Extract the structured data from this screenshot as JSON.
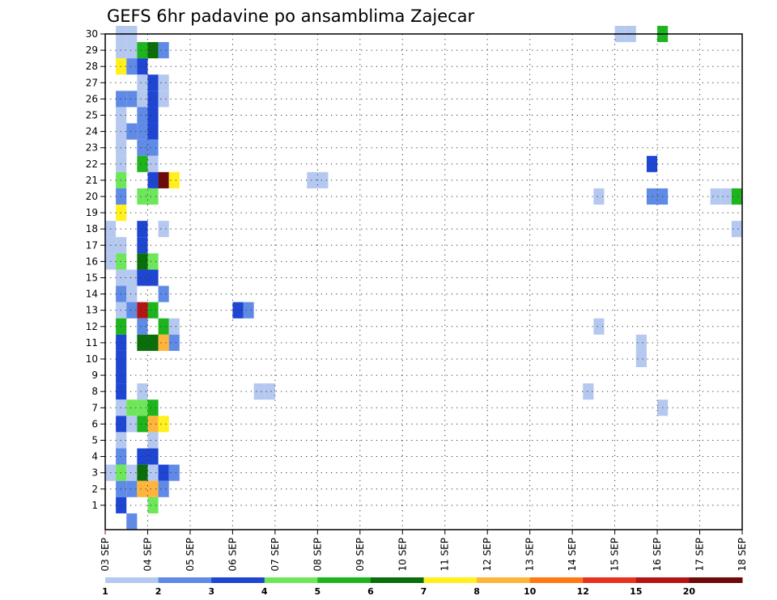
{
  "chart_data": {
    "type": "heatmap",
    "title": "GEFS 6hr padavine po ansamblima Zajecar",
    "x_ticks": [
      "03 SEP",
      "04 SEP",
      "05 SEP",
      "06 SEP",
      "07 SEP",
      "08 SEP",
      "09 SEP",
      "10 SEP",
      "11 SEP",
      "12 SEP",
      "13 SEP",
      "14 SEP",
      "15 SEP",
      "16 SEP",
      "17 SEP",
      "18 SEP"
    ],
    "y_ticks": [
      "1",
      "2",
      "3",
      "4",
      "5",
      "6",
      "7",
      "8",
      "9",
      "10",
      "11",
      "12",
      "13",
      "14",
      "15",
      "16",
      "17",
      "18",
      "19",
      "20",
      "21",
      "22",
      "23",
      "24",
      "25",
      "26",
      "27",
      "28",
      "29",
      "30"
    ],
    "xlim": [
      0,
      60
    ],
    "ylim": [
      0,
      30
    ],
    "grid": true,
    "colorbar": {
      "labels": [
        "1",
        "2",
        "3",
        "4",
        "5",
        "6",
        "7",
        "8",
        "10",
        "12",
        "15",
        "20"
      ],
      "colors": [
        "#b4c8f0",
        "#5f8ae6",
        "#1e46d2",
        "#6ee65a",
        "#1eb41e",
        "#0a6e0a",
        "#fff01e",
        "#ffb43c",
        "#ff7814",
        "#e6321e",
        "#b41414",
        "#6e0a0a"
      ]
    },
    "cells": [
      [
        1,
        30,
        1
      ],
      [
        2,
        30,
        1
      ],
      [
        1,
        29,
        1
      ],
      [
        2,
        29,
        1
      ],
      [
        3,
        29,
        5
      ],
      [
        4,
        29,
        6
      ],
      [
        5,
        29,
        2
      ],
      [
        1,
        28,
        7
      ],
      [
        2,
        28,
        2
      ],
      [
        3,
        28,
        3
      ],
      [
        3,
        27,
        1
      ],
      [
        4,
        27,
        3
      ],
      [
        5,
        27,
        1
      ],
      [
        1,
        26,
        2
      ],
      [
        2,
        26,
        2
      ],
      [
        3,
        26,
        1
      ],
      [
        4,
        26,
        3
      ],
      [
        5,
        26,
        1
      ],
      [
        1,
        25,
        1
      ],
      [
        3,
        25,
        2
      ],
      [
        4,
        25,
        3
      ],
      [
        1,
        24,
        1
      ],
      [
        2,
        24,
        2
      ],
      [
        3,
        24,
        2
      ],
      [
        4,
        24,
        3
      ],
      [
        1,
        23,
        1
      ],
      [
        3,
        23,
        2
      ],
      [
        4,
        23,
        2
      ],
      [
        1,
        22,
        1
      ],
      [
        3,
        22,
        5
      ],
      [
        4,
        22,
        1
      ],
      [
        1,
        21,
        4
      ],
      [
        4,
        21,
        3
      ],
      [
        5,
        21,
        12
      ],
      [
        6,
        21,
        7
      ],
      [
        1,
        20,
        2
      ],
      [
        3,
        20,
        4
      ],
      [
        4,
        20,
        4
      ],
      [
        1,
        19,
        7
      ],
      [
        0,
        18,
        1
      ],
      [
        3,
        18,
        3
      ],
      [
        5,
        18,
        1
      ],
      [
        0,
        17,
        1
      ],
      [
        1,
        17,
        1
      ],
      [
        3,
        17,
        3
      ],
      [
        0,
        16,
        1
      ],
      [
        1,
        16,
        4
      ],
      [
        3,
        16,
        6
      ],
      [
        4,
        16,
        4
      ],
      [
        1,
        15,
        1
      ],
      [
        2,
        15,
        1
      ],
      [
        3,
        15,
        3
      ],
      [
        4,
        15,
        3
      ],
      [
        1,
        14,
        2
      ],
      [
        2,
        14,
        1
      ],
      [
        5,
        14,
        2
      ],
      [
        1,
        13,
        1
      ],
      [
        2,
        13,
        2
      ],
      [
        3,
        13,
        11
      ],
      [
        4,
        13,
        5
      ],
      [
        1,
        12,
        5
      ],
      [
        3,
        12,
        2
      ],
      [
        5,
        12,
        5
      ],
      [
        6,
        12,
        1
      ],
      [
        1,
        11,
        3
      ],
      [
        3,
        11,
        6
      ],
      [
        4,
        11,
        6
      ],
      [
        5,
        11,
        8
      ],
      [
        6,
        11,
        2
      ],
      [
        1,
        10,
        3
      ],
      [
        1,
        9,
        3
      ],
      [
        1,
        8,
        3
      ],
      [
        3,
        8,
        1
      ],
      [
        1,
        7,
        1
      ],
      [
        2,
        7,
        4
      ],
      [
        3,
        7,
        4
      ],
      [
        4,
        7,
        5
      ],
      [
        1,
        6,
        3
      ],
      [
        2,
        6,
        1
      ],
      [
        3,
        6,
        5
      ],
      [
        4,
        6,
        8
      ],
      [
        5,
        6,
        7
      ],
      [
        1,
        5,
        1
      ],
      [
        4,
        5,
        1
      ],
      [
        1,
        4,
        2
      ],
      [
        3,
        4,
        3
      ],
      [
        4,
        4,
        3
      ],
      [
        0,
        3,
        1
      ],
      [
        1,
        3,
        4
      ],
      [
        2,
        3,
        1
      ],
      [
        3,
        3,
        6
      ],
      [
        4,
        3,
        1
      ],
      [
        5,
        3,
        3
      ],
      [
        6,
        3,
        2
      ],
      [
        1,
        2,
        2
      ],
      [
        2,
        2,
        2
      ],
      [
        3,
        2,
        8
      ],
      [
        4,
        2,
        8
      ],
      [
        5,
        2,
        2
      ],
      [
        1,
        1,
        3
      ],
      [
        4,
        1,
        4
      ],
      [
        2,
        0,
        2
      ],
      [
        12,
        13,
        3
      ],
      [
        13,
        13,
        2
      ],
      [
        14,
        8,
        1
      ],
      [
        15,
        8,
        1
      ],
      [
        19,
        21,
        1
      ],
      [
        20,
        21,
        1
      ],
      [
        45,
        8,
        1
      ],
      [
        46,
        20,
        1
      ],
      [
        46,
        12,
        1
      ],
      [
        48,
        30,
        1
      ],
      [
        49,
        30,
        1
      ],
      [
        50,
        10,
        1
      ],
      [
        50,
        11,
        1
      ],
      [
        51,
        20,
        2
      ],
      [
        52,
        20,
        2
      ],
      [
        51,
        22,
        3
      ],
      [
        52,
        7,
        1
      ],
      [
        52,
        30,
        5
      ],
      [
        57,
        20,
        1
      ],
      [
        58,
        20,
        1
      ],
      [
        59,
        20,
        5
      ],
      [
        59,
        18,
        1
      ]
    ]
  }
}
